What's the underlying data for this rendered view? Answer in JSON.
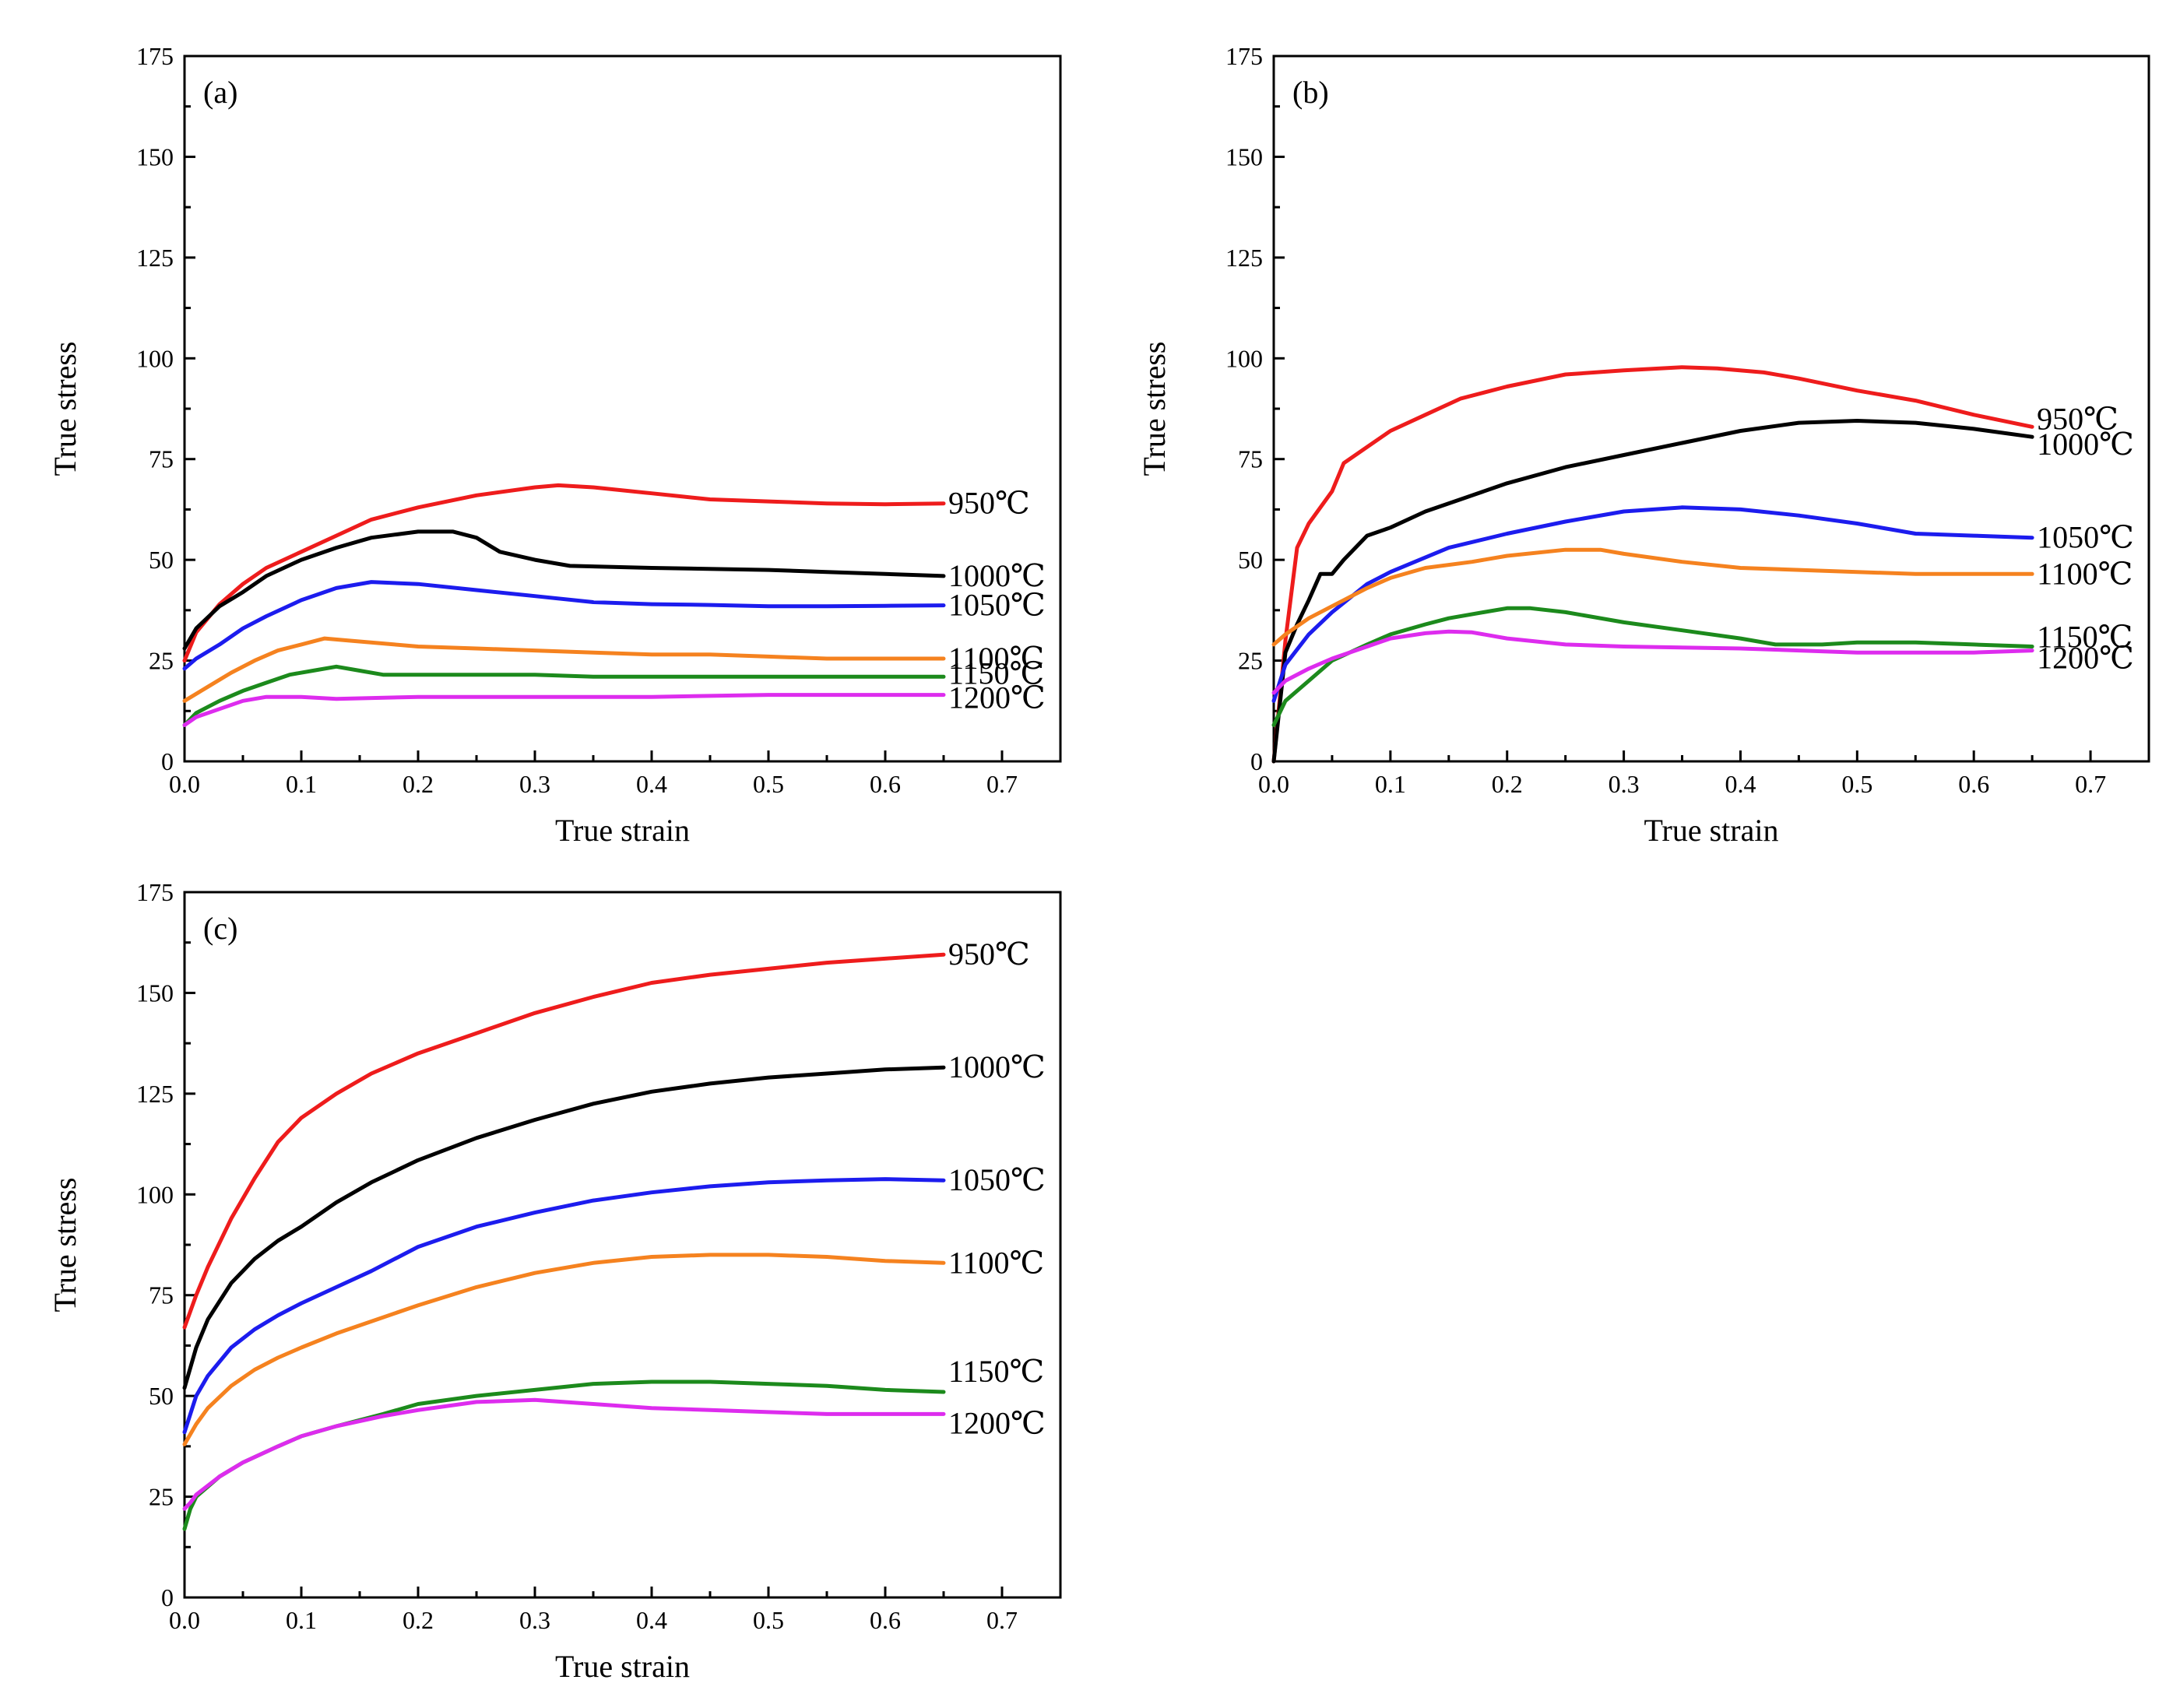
{
  "chart_data": [
    {
      "type": "line",
      "panel_label": "(a)",
      "xlabel": "True strain",
      "ylabel": "True stress",
      "xlim": [
        0,
        0.75
      ],
      "ylim": [
        0,
        175
      ],
      "xticks": [
        "0.0",
        "0.1",
        "0.2",
        "0.3",
        "0.4",
        "0.5",
        "0.6",
        "0.7"
      ],
      "yticks": [
        "0",
        "25",
        "50",
        "75",
        "100",
        "125",
        "150",
        "175"
      ],
      "legend": "inline labels at line ends",
      "grid": false,
      "series": [
        {
          "name": "950℃",
          "color": "#ee1c1c",
          "x": [
            0,
            0.01,
            0.03,
            0.05,
            0.07,
            0.1,
            0.13,
            0.16,
            0.2,
            0.25,
            0.3,
            0.32,
            0.35,
            0.4,
            0.45,
            0.5,
            0.55,
            0.6,
            0.65
          ],
          "y": [
            25,
            32,
            39,
            44,
            48,
            52,
            56,
            60,
            63,
            66,
            68,
            68.5,
            68,
            66.5,
            65,
            64.5,
            64,
            63.8,
            64
          ]
        },
        {
          "name": "1000℃",
          "color": "#000000",
          "x": [
            0,
            0.01,
            0.03,
            0.05,
            0.07,
            0.1,
            0.13,
            0.16,
            0.2,
            0.23,
            0.25,
            0.27,
            0.3,
            0.33,
            0.4,
            0.5,
            0.55,
            0.6,
            0.65
          ],
          "y": [
            28,
            33,
            38.5,
            42,
            46,
            50,
            53,
            55.5,
            57,
            57,
            55.5,
            52,
            50,
            48.5,
            48,
            47.5,
            47,
            46.5,
            46
          ]
        },
        {
          "name": "1050℃",
          "color": "#1c1cee",
          "x": [
            0,
            0.01,
            0.03,
            0.05,
            0.07,
            0.1,
            0.13,
            0.16,
            0.2,
            0.25,
            0.3,
            0.35,
            0.4,
            0.45,
            0.5,
            0.55,
            0.6,
            0.65
          ],
          "y": [
            23,
            25.5,
            29,
            33,
            36,
            40,
            43,
            44.5,
            44,
            42.5,
            41,
            39.5,
            39,
            38.8,
            38.5,
            38.5,
            38.6,
            38.7
          ]
        },
        {
          "name": "1100℃",
          "color": "#f5821f",
          "x": [
            0,
            0.02,
            0.04,
            0.06,
            0.08,
            0.1,
            0.12,
            0.14,
            0.18,
            0.2,
            0.25,
            0.3,
            0.35,
            0.4,
            0.45,
            0.5,
            0.55,
            0.6,
            0.65
          ],
          "y": [
            15,
            18.5,
            22,
            25,
            27.5,
            29,
            30.5,
            30,
            29,
            28.5,
            28,
            27.5,
            27,
            26.5,
            26.5,
            26,
            25.5,
            25.5,
            25.5
          ]
        },
        {
          "name": "1150℃",
          "color": "#1c8a1c",
          "x": [
            0,
            0.01,
            0.03,
            0.05,
            0.07,
            0.09,
            0.11,
            0.13,
            0.15,
            0.17,
            0.2,
            0.25,
            0.3,
            0.35,
            0.4,
            0.45,
            0.5,
            0.55,
            0.6,
            0.65
          ],
          "y": [
            9,
            12,
            15,
            17.5,
            19.5,
            21.5,
            22.5,
            23.5,
            22.5,
            21.5,
            21.5,
            21.5,
            21.5,
            21,
            21,
            21,
            21,
            21,
            21,
            21
          ]
        },
        {
          "name": "1200℃",
          "color": "#dd2cee",
          "x": [
            0,
            0.01,
            0.03,
            0.05,
            0.07,
            0.1,
            0.13,
            0.2,
            0.3,
            0.4,
            0.5,
            0.6,
            0.65
          ],
          "y": [
            9,
            11,
            13,
            15,
            16,
            16,
            15.5,
            16,
            16,
            16,
            16.5,
            16.5,
            16.5
          ]
        }
      ]
    },
    {
      "type": "line",
      "panel_label": "(b)",
      "xlabel": "True strain",
      "ylabel": "True stress",
      "xlim": [
        0,
        0.75
      ],
      "ylim": [
        0,
        175
      ],
      "xticks": [
        "0.0",
        "0.1",
        "0.2",
        "0.3",
        "0.4",
        "0.5",
        "0.6",
        "0.7"
      ],
      "yticks": [
        "0",
        "25",
        "50",
        "75",
        "100",
        "125",
        "150",
        "175"
      ],
      "legend": "inline labels at line ends",
      "grid": false,
      "series": [
        {
          "name": "950℃",
          "color": "#ee1c1c",
          "x": [
            0,
            0.01,
            0.02,
            0.03,
            0.05,
            0.06,
            0.08,
            0.1,
            0.13,
            0.16,
            0.2,
            0.25,
            0.3,
            0.35,
            0.38,
            0.42,
            0.45,
            0.5,
            0.55,
            0.6,
            0.65
          ],
          "y": [
            0,
            30,
            53,
            59,
            67,
            74,
            78,
            82,
            86,
            90,
            93,
            96,
            97,
            97.8,
            97.5,
            96.5,
            95,
            92,
            89.5,
            86,
            83
          ]
        },
        {
          "name": "1000℃",
          "color": "#000000",
          "x": [
            0,
            0.01,
            0.02,
            0.03,
            0.04,
            0.05,
            0.06,
            0.08,
            0.1,
            0.13,
            0.16,
            0.2,
            0.25,
            0.3,
            0.35,
            0.4,
            0.45,
            0.5,
            0.55,
            0.6,
            0.65
          ],
          "y": [
            0,
            27,
            34,
            40,
            46.5,
            46.5,
            50,
            56,
            58,
            62,
            65,
            69,
            73,
            76,
            79,
            82,
            84,
            84.5,
            84,
            82.5,
            80.5
          ]
        },
        {
          "name": "1050℃",
          "color": "#1c1cee",
          "x": [
            0,
            0.01,
            0.03,
            0.05,
            0.08,
            0.1,
            0.15,
            0.2,
            0.25,
            0.3,
            0.35,
            0.4,
            0.45,
            0.5,
            0.55,
            0.6,
            0.65
          ],
          "y": [
            15,
            24,
            31.5,
            37,
            44,
            47,
            53,
            56.5,
            59.5,
            62,
            63,
            62.5,
            61,
            59,
            56.5,
            56,
            55.5
          ]
        },
        {
          "name": "1100℃",
          "color": "#f5821f",
          "x": [
            0,
            0.01,
            0.03,
            0.05,
            0.08,
            0.1,
            0.13,
            0.17,
            0.2,
            0.25,
            0.28,
            0.3,
            0.35,
            0.4,
            0.45,
            0.5,
            0.55,
            0.6,
            0.65
          ],
          "y": [
            29,
            31.5,
            35.5,
            38.5,
            43,
            45.5,
            48,
            49.5,
            51,
            52.5,
            52.5,
            51.5,
            49.5,
            48,
            47.5,
            47,
            46.5,
            46.5,
            46.5
          ]
        },
        {
          "name": "1150℃",
          "color": "#1c8a1c",
          "x": [
            0,
            0.005,
            0.01,
            0.03,
            0.05,
            0.08,
            0.1,
            0.13,
            0.15,
            0.18,
            0.2,
            0.22,
            0.25,
            0.3,
            0.35,
            0.4,
            0.43,
            0.47,
            0.5,
            0.55,
            0.6,
            0.65
          ],
          "y": [
            9,
            12,
            15,
            20,
            25,
            29,
            31.5,
            34,
            35.5,
            37,
            38,
            38,
            37,
            34.5,
            32.5,
            30.5,
            29,
            29,
            29.5,
            29.5,
            29,
            28.5
          ]
        },
        {
          "name": "1200℃",
          "color": "#dd2cee",
          "x": [
            0,
            0.01,
            0.03,
            0.05,
            0.08,
            0.1,
            0.13,
            0.15,
            0.17,
            0.2,
            0.25,
            0.3,
            0.4,
            0.5,
            0.6,
            0.65
          ],
          "y": [
            17,
            20,
            23,
            25.5,
            28.5,
            30.5,
            31.8,
            32.2,
            32,
            30.5,
            29,
            28.5,
            28,
            27,
            27,
            27.5
          ]
        }
      ]
    },
    {
      "type": "line",
      "panel_label": "(c)",
      "xlabel": "True strain",
      "ylabel": "True stress",
      "xlim": [
        0,
        0.75
      ],
      "ylim": [
        0,
        175
      ],
      "xticks": [
        "0.0",
        "0.1",
        "0.2",
        "0.3",
        "0.4",
        "0.5",
        "0.6",
        "0.7"
      ],
      "yticks": [
        "0",
        "25",
        "50",
        "75",
        "100",
        "125",
        "150",
        "175"
      ],
      "legend": "inline labels at line ends",
      "grid": false,
      "series": [
        {
          "name": "950℃",
          "color": "#ee1c1c",
          "x": [
            0,
            0.01,
            0.02,
            0.04,
            0.06,
            0.08,
            0.1,
            0.13,
            0.16,
            0.2,
            0.25,
            0.3,
            0.35,
            0.4,
            0.45,
            0.5,
            0.55,
            0.6,
            0.65
          ],
          "y": [
            67,
            75,
            82,
            94,
            104,
            113,
            119,
            125,
            130,
            135,
            140,
            145,
            149,
            152.5,
            154.5,
            156,
            157.5,
            158.5,
            159.5
          ]
        },
        {
          "name": "1000℃",
          "color": "#000000",
          "x": [
            0,
            0.01,
            0.02,
            0.04,
            0.06,
            0.08,
            0.1,
            0.13,
            0.16,
            0.2,
            0.25,
            0.3,
            0.35,
            0.4,
            0.45,
            0.5,
            0.55,
            0.6,
            0.65
          ],
          "y": [
            52,
            62,
            69,
            78,
            84,
            88.5,
            92,
            98,
            103,
            108.5,
            114,
            118.5,
            122.5,
            125.5,
            127.5,
            129,
            130,
            131,
            131.5
          ]
        },
        {
          "name": "1050℃",
          "color": "#1c1cee",
          "x": [
            0,
            0.01,
            0.02,
            0.04,
            0.06,
            0.08,
            0.1,
            0.13,
            0.16,
            0.2,
            0.25,
            0.3,
            0.35,
            0.4,
            0.45,
            0.5,
            0.55,
            0.6,
            0.65
          ],
          "y": [
            41,
            50,
            55,
            62,
            66.5,
            70,
            73,
            77,
            81,
            87,
            92,
            95.5,
            98.5,
            100.5,
            102,
            103,
            103.5,
            103.8,
            103.5
          ]
        },
        {
          "name": "1100℃",
          "color": "#f5821f",
          "x": [
            0,
            0.01,
            0.02,
            0.04,
            0.06,
            0.08,
            0.1,
            0.13,
            0.16,
            0.2,
            0.25,
            0.3,
            0.35,
            0.4,
            0.45,
            0.5,
            0.55,
            0.6,
            0.65
          ],
          "y": [
            38,
            43,
            47,
            52.5,
            56.5,
            59.5,
            62,
            65.5,
            68.5,
            72.5,
            77,
            80.5,
            83,
            84.5,
            85,
            85,
            84.5,
            83.5,
            83
          ]
        },
        {
          "name": "1150℃",
          "color": "#1c8a1c",
          "x": [
            0,
            0.005,
            0.01,
            0.03,
            0.05,
            0.08,
            0.1,
            0.13,
            0.17,
            0.2,
            0.25,
            0.3,
            0.35,
            0.4,
            0.45,
            0.5,
            0.55,
            0.6,
            0.65
          ],
          "y": [
            17,
            22,
            25,
            30,
            33.5,
            37.5,
            40,
            42.5,
            45.5,
            48,
            50,
            51.5,
            53,
            53.5,
            53.5,
            53,
            52.5,
            51.5,
            51
          ]
        },
        {
          "name": "1200℃",
          "color": "#dd2cee",
          "x": [
            0,
            0.005,
            0.01,
            0.03,
            0.05,
            0.08,
            0.1,
            0.13,
            0.17,
            0.2,
            0.25,
            0.3,
            0.35,
            0.4,
            0.45,
            0.5,
            0.55,
            0.6,
            0.65
          ],
          "y": [
            22,
            23.5,
            25.5,
            30,
            33.5,
            37.5,
            40,
            42.5,
            45,
            46.5,
            48.5,
            49,
            48,
            47,
            46.5,
            46,
            45.5,
            45.5,
            45.5
          ]
        }
      ]
    }
  ]
}
